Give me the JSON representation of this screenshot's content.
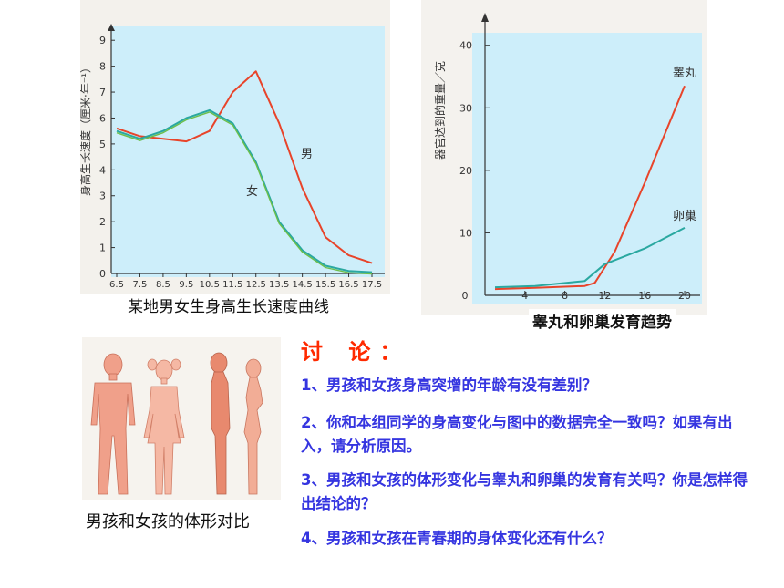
{
  "chart1": {
    "caption": "某地男女生身高生长速度曲线",
    "ylabel": "身高生长速度（厘米·年⁻¹）",
    "series_labels": {
      "male": "男",
      "female": "女"
    },
    "chart_data": {
      "type": "line",
      "title": "",
      "xlabel": "",
      "ylabel": "身高生长速度（厘米·年⁻¹）",
      "x_tick_labels": [
        "6.5",
        "7.5",
        "8.5",
        "9.5",
        "10.5",
        "11.5",
        "12.5",
        "13.5",
        "14.5",
        "15.5",
        "16.5",
        "17.5"
      ],
      "y_tick_labels": [
        "0",
        "1",
        "2",
        "3",
        "4",
        "5",
        "6",
        "7",
        "8",
        "9"
      ],
      "ylim": [
        0,
        9.5
      ],
      "x": [
        6.5,
        7.5,
        8.5,
        9.5,
        10.5,
        11.5,
        12.5,
        13.5,
        14.5,
        15.5,
        16.5,
        17.5
      ],
      "series": [
        {
          "name": "男",
          "color": "#e8442a",
          "values": [
            5.6,
            5.3,
            5.2,
            5.1,
            5.5,
            7.0,
            7.8,
            5.8,
            3.3,
            1.4,
            0.7,
            0.4
          ]
        },
        {
          "name": "女",
          "color": "#2aa8a0",
          "values": [
            5.5,
            5.2,
            5.5,
            6.0,
            6.3,
            5.8,
            4.3,
            2.0,
            0.9,
            0.3,
            0.1,
            0.05
          ]
        }
      ]
    }
  },
  "chart2": {
    "caption": "睾丸和卵巢发育趋势",
    "ylabel": "器官达到的重量／克",
    "series_labels": {
      "testis": "睾丸",
      "ovary": "卵巢"
    },
    "chart_data": {
      "type": "line",
      "title": "",
      "xlabel": "",
      "ylabel": "器官达到的重量／克",
      "x_tick_labels": [
        "0",
        "4",
        "8",
        "12",
        "16",
        "20"
      ],
      "y_tick_labels": [
        "10",
        "20",
        "30",
        "40"
      ],
      "xlim": [
        0,
        21
      ],
      "ylim": [
        0,
        42
      ],
      "series": [
        {
          "name": "睾丸",
          "color": "#e8442a",
          "x": [
            1,
            5,
            10,
            11,
            13,
            16,
            20
          ],
          "values": [
            1.0,
            1.2,
            1.5,
            2.0,
            7.0,
            18.0,
            33.5
          ]
        },
        {
          "name": "卵巢",
          "color": "#2aa8a0",
          "x": [
            1,
            5,
            10,
            12,
            16,
            20
          ],
          "values": [
            1.3,
            1.5,
            2.3,
            5.0,
            7.5,
            10.8
          ]
        }
      ]
    }
  },
  "figure3": {
    "caption": "男孩和女孩的体形对比"
  },
  "discussion": {
    "title": "讨 论：",
    "questions": [
      "1、男孩和女孩身高突增的年龄有没有差别？",
      "2、你和本组同学的身高变化与图中的数据完全一致吗？如果有出入，请分析原因。",
      "3、男孩和女孩的体形变化与睾丸和卵巢的发育有关吗？你是怎样得出结论的？",
      "4、男孩和女孩在青春期的身体变化还有什么？"
    ]
  },
  "colors": {
    "chart_bg": "#cdeefa",
    "question_text": "#3535e0",
    "title_text": "#ff2a00",
    "body_fill": "#f0a08a"
  }
}
